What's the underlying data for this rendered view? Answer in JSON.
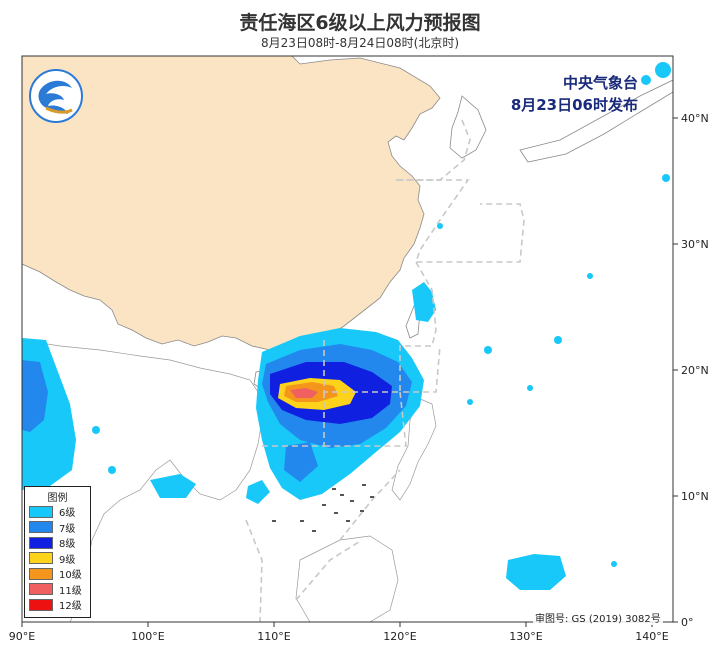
{
  "header": {
    "title": "责任海区6级以上风力预报图",
    "valid_period": "8月23日08时-8月24日08时(北京时)"
  },
  "agency": {
    "name": "中央气象台",
    "issued": "8月23日06时发布"
  },
  "approval_number": "审图号: GS (2019) 3082号",
  "axes": {
    "lon_ticks": [
      "90°E",
      "100°E",
      "110°E",
      "120°E",
      "130°E",
      "140°E"
    ],
    "lat_ticks": [
      "40°N",
      "30°N",
      "20°N",
      "10°N",
      "0°"
    ]
  },
  "legend": {
    "title": "图例",
    "items": [
      {
        "label": "6级",
        "color": "#18c8f8"
      },
      {
        "label": "7级",
        "color": "#2288ee"
      },
      {
        "label": "8级",
        "color": "#1020e0"
      },
      {
        "label": "9级",
        "color": "#ffd21c"
      },
      {
        "label": "10级",
        "color": "#f5961c"
      },
      {
        "label": "11级",
        "color": "#f06060"
      },
      {
        "label": "12级",
        "color": "#ee1111"
      }
    ]
  },
  "colors": {
    "land_china": "#fae4c4",
    "grid_dash": "#c8c8c8"
  }
}
